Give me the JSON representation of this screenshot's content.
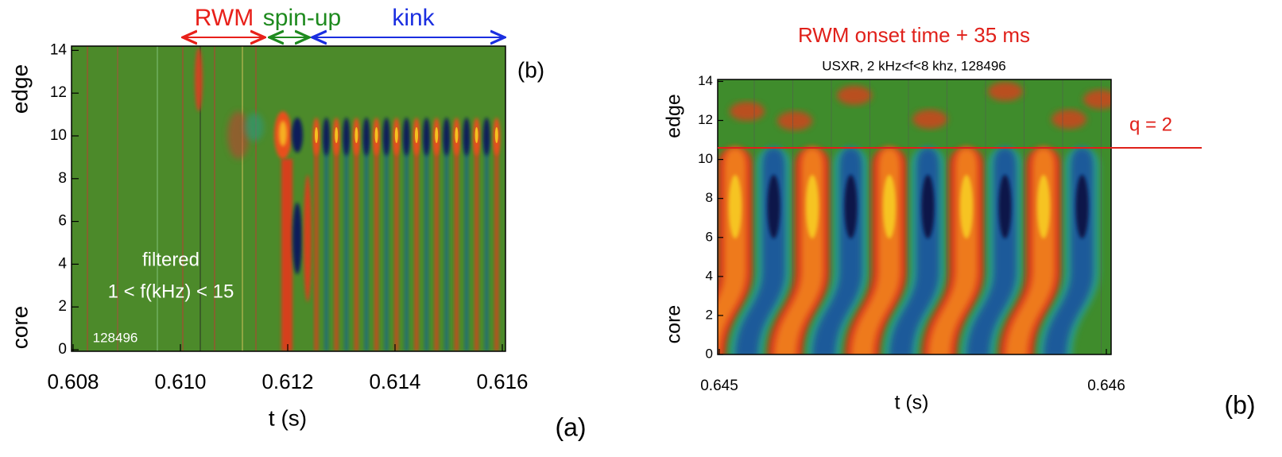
{
  "chart_data": [
    {
      "type": "contour",
      "phase_labels": [
        "RWM",
        "spin-up",
        "kink"
      ],
      "panel_label": "(b)",
      "text": [
        "filtered",
        "1 < f(kHz) < 15"
      ],
      "shot": "128496",
      "x_label": "t (s)",
      "y_label_top": "edge",
      "y_label_bottom": "core",
      "caption": "(a)",
      "xlim": [
        0.608,
        0.616
      ],
      "xticks": [
        0.608,
        {
          "value": 0.61,
          "label": "0.610"
        },
        0.612,
        0.614,
        0.616
      ],
      "ylim": [
        0,
        14.2
      ],
      "yticks": [
        0,
        2,
        4,
        6,
        8,
        10,
        12,
        14
      ]
    },
    {
      "type": "contour",
      "title": "RWM onset time + 35 ms",
      "subtitle": "USXR, 2 kHz<f<8 khz, 128496",
      "annotation": "q = 2",
      "x_label": "t (s)",
      "y_label_top": "edge",
      "y_label_bottom": "core",
      "caption": "(b)",
      "xlim": [
        0.645,
        0.646
      ],
      "xticks": [
        0.645,
        0.646
      ],
      "ylim": [
        0,
        14.1
      ],
      "yticks": [
        0,
        2,
        4,
        6,
        8,
        10,
        12,
        14
      ]
    }
  ]
}
